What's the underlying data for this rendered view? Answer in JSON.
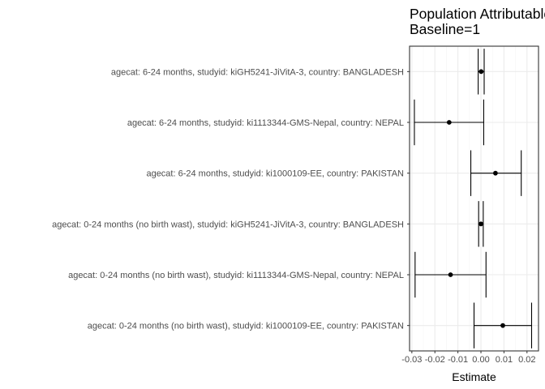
{
  "chart_data": {
    "type": "forest",
    "title": [
      "Population Attributable",
      "Baseline=1"
    ],
    "xlabel": "Estimate",
    "ylabel": "",
    "xlim": [
      -0.031,
      0.025
    ],
    "x_ticks": [
      -0.03,
      -0.02,
      -0.01,
      0.0,
      0.01,
      0.02
    ],
    "x_tick_labels": [
      "-0.03",
      "-0.02",
      "-0.01",
      "0.00",
      "0.01",
      "0.02"
    ],
    "grid": true,
    "legend": "none",
    "colors": {
      "panel_border": "#333333",
      "grid_major": "#ebebeb",
      "grid_minor": "#f5f5f5",
      "mark": "#000000"
    },
    "rows": [
      {
        "label": "agecat: 6-24 months, studyid: kiGH5241-JiVitA-3, country: BANGLADESH",
        "estimate": 0.0001,
        "lower": -0.0012,
        "upper": 0.0014
      },
      {
        "label": "agecat: 6-24 months, studyid: ki1113344-GMS-Nepal, country: NEPAL",
        "estimate": -0.0138,
        "lower": -0.0289,
        "upper": 0.0012
      },
      {
        "label": "agecat: 6-24 months, studyid: ki1000109-EE, country: PAKISTAN",
        "estimate": 0.0063,
        "lower": -0.0044,
        "upper": 0.0175
      },
      {
        "label": "agecat: 0-24 months (no birth wast), studyid: kiGH5241-JiVitA-3, country: BANGLADESH",
        "estimate": 0.0,
        "lower": -0.001,
        "upper": 0.001
      },
      {
        "label": "agecat: 0-24 months (no birth wast), studyid: ki1113344-GMS-Nepal, country: NEPAL",
        "estimate": -0.0132,
        "lower": -0.0286,
        "upper": 0.0022
      },
      {
        "label": "agecat: 0-24 months (no birth wast), studyid: ki1000109-EE, country: PAKISTAN",
        "estimate": 0.0095,
        "lower": -0.003,
        "upper": 0.022
      }
    ]
  }
}
